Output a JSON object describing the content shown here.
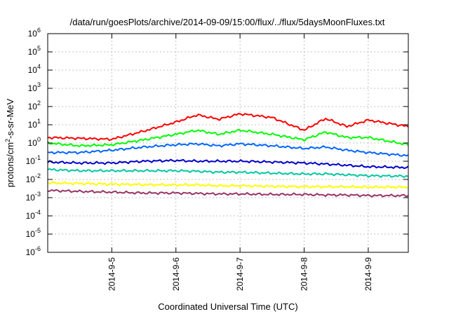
{
  "chart_data": {
    "type": "line",
    "title": "/data/run/goesPlots/archive/2014-09-09/15:00/flux/../flux/5daysMoonFluxes.txt",
    "xlabel": "Coordinated Universal Time (UTC)",
    "ylabel": {
      "base": "protons/cm",
      "sup": "2",
      "rest": "-s-sr-MeV"
    },
    "xlim": [
      "2014-09-04 00:00",
      "2014-09-09 15:00"
    ],
    "x_ticks": [
      "2014-9-5",
      "2014-9-6",
      "2014-9-7",
      "2014-9-8",
      "2014-9-9"
    ],
    "y_scale": "log",
    "ylim": [
      1e-06,
      1000000.0
    ],
    "y_ticks": [
      {
        "base": "10",
        "exp": "-6"
      },
      {
        "base": "10",
        "exp": "-5"
      },
      {
        "base": "10",
        "exp": "-4"
      },
      {
        "base": "10",
        "exp": "-3"
      },
      {
        "base": "10",
        "exp": "-2"
      },
      {
        "base": "10",
        "exp": "-1"
      },
      {
        "base": "10",
        "exp": "0"
      },
      {
        "base": "10",
        "exp": "1"
      },
      {
        "base": "10",
        "exp": "2"
      },
      {
        "base": "10",
        "exp": "3"
      },
      {
        "base": "10",
        "exp": "4"
      },
      {
        "base": "10",
        "exp": "5"
      },
      {
        "base": "10",
        "exp": "6"
      }
    ],
    "grid": true,
    "x": [
      "2014-09-04 00:00",
      "2014-09-04 12:00",
      "2014-09-05 00:00",
      "2014-09-05 12:00",
      "2014-09-06 00:00",
      "2014-09-06 08:00",
      "2014-09-06 16:00",
      "2014-09-07 00:00",
      "2014-09-07 12:00",
      "2014-09-08 00:00",
      "2014-09-08 08:00",
      "2014-09-08 16:00",
      "2014-09-09 00:00",
      "2014-09-09 15:00"
    ],
    "series": [
      {
        "color": "#ff0000",
        "values": [
          2.0,
          1.8,
          1.6,
          4.5,
          14,
          35,
          20,
          40,
          25,
          5,
          22,
          8,
          18,
          8
        ]
      },
      {
        "color": "#00ff00",
        "values": [
          1.0,
          0.7,
          0.8,
          1.5,
          3,
          5,
          3,
          5,
          3,
          1.5,
          4,
          2,
          2,
          0.8
        ]
      },
      {
        "color": "#0066ff",
        "values": [
          0.3,
          0.3,
          0.4,
          0.6,
          0.8,
          0.9,
          0.7,
          0.9,
          0.7,
          0.5,
          0.6,
          0.4,
          0.3,
          0.2
        ]
      },
      {
        "color": "#0000cc",
        "values": [
          0.09,
          0.08,
          0.08,
          0.1,
          0.11,
          0.1,
          0.1,
          0.1,
          0.09,
          0.08,
          0.07,
          0.06,
          0.05,
          0.045
        ]
      },
      {
        "color": "#00c8a0",
        "values": [
          0.035,
          0.03,
          0.03,
          0.03,
          0.03,
          0.028,
          0.025,
          0.025,
          0.022,
          0.02,
          0.02,
          0.018,
          0.016,
          0.015
        ]
      },
      {
        "color": "#ffff00",
        "values": [
          0.0065,
          0.006,
          0.0055,
          0.0052,
          0.005,
          0.005,
          0.0045,
          0.0045,
          0.0042,
          0.004,
          0.004,
          0.004,
          0.0038,
          0.0038
        ]
      },
      {
        "color": "#993366",
        "values": [
          0.0025,
          0.0022,
          0.002,
          0.0018,
          0.0018,
          0.0017,
          0.0016,
          0.0016,
          0.0015,
          0.0015,
          0.0014,
          0.0014,
          0.0013,
          0.0013
        ]
      }
    ]
  }
}
